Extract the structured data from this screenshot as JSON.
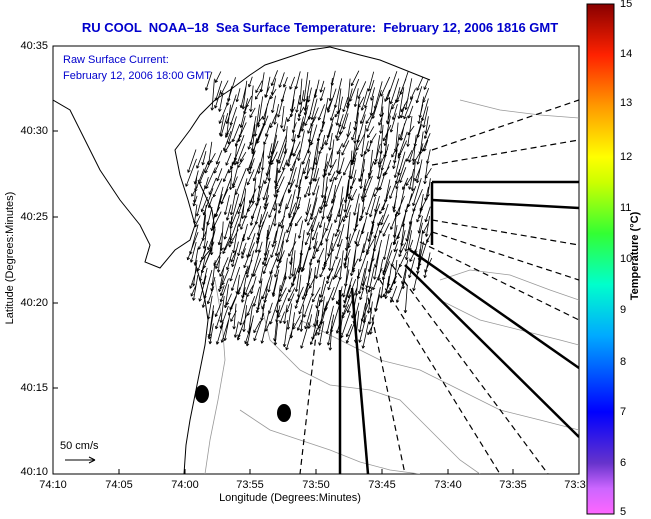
{
  "title": "RU COOL  NOAA–18  Sea Surface Temperature:  February 12, 2006 1816 GMT",
  "annotation": {
    "line1": "Raw Surface Current:",
    "line2": "February 12, 2006 18:00 GMT"
  },
  "scale_label": "50 cm/s",
  "axes": {
    "xlabel": "Longitude (Degrees:Minutes)",
    "ylabel": "Latitude (Degrees:Minutes)",
    "x_ticks": [
      "74:10",
      "74:05",
      "74:00",
      "73:55",
      "73:50",
      "73:45",
      "73:40",
      "73:35",
      "73:3"
    ],
    "y_ticks": [
      "40:35",
      "40:30",
      "40:25",
      "40:20",
      "40:15",
      "40:10"
    ]
  },
  "colorbar": {
    "title": "Temperature (°C)",
    "ticks": [
      "15",
      "14",
      "13",
      "12",
      "11",
      "10",
      "9",
      "8",
      "7",
      "6",
      "5"
    ],
    "range": [
      5,
      15
    ]
  },
  "colors": {
    "title": "#0000cc",
    "annotation": "#0000cc"
  }
}
